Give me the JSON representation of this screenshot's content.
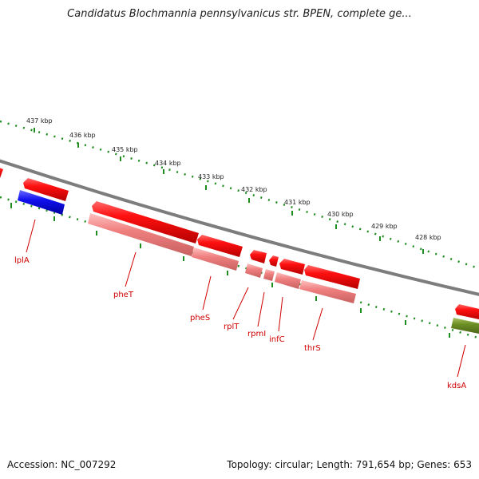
{
  "title": "Candidatus Blochmannia pennsylvanicus str. BPEN, complete ge...",
  "footer": {
    "accession": "Accession: NC_007292",
    "summary": "Topology: circular; Length: 791,654 bp; Genes: 653"
  },
  "colors": {
    "forward_gene": "#ee1111",
    "reverse_gene": "#1a1ae6",
    "cds": "#f08080",
    "rna": "#6b8e23",
    "backbone": "#7d7d7d",
    "ticks": "#1e8c1e",
    "gene_label": "#d00000"
  },
  "ruler": {
    "unit": "kbp",
    "ticks": [
      "437 kbp",
      "436 kbp",
      "435 kbp",
      "434 kbp",
      "433 kbp",
      "432 kbp",
      "431 kbp",
      "430 kbp",
      "429 kbp",
      "428 kbp"
    ]
  },
  "genes": [
    "lplA",
    "pheT",
    "pheS",
    "rplT",
    "rpmI",
    "infC",
    "thrS",
    "kdsA"
  ]
}
